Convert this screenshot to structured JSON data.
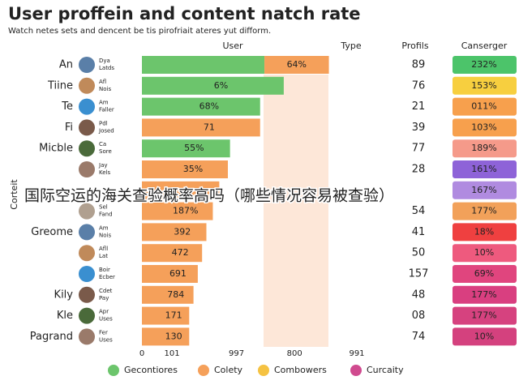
{
  "chart_data": {
    "type": "bar",
    "title": "User proffein and content natch rate",
    "subtitle": "Watch netes sets and dencent be tis pirofriait ateres yut difform.",
    "y_axis_label": "Corteit",
    "headers": [
      "User",
      "Type",
      "Profils",
      "Canserger"
    ],
    "overlay": "国际空运的海关查验概率高吗（哪些情况容易被查验）",
    "xlim": [
      0,
      100
    ],
    "xticks": [
      {
        "value": 0,
        "label": "0"
      },
      {
        "value": 14,
        "label": "101"
      },
      {
        "value": 44,
        "label": "997"
      },
      {
        "value": 71,
        "label": "800"
      },
      {
        "value": 100,
        "label": "991"
      }
    ],
    "rows": [
      {
        "name": "An",
        "handle": [
          "Dya",
          "Latds"
        ],
        "value": 57,
        "color": "#6cc56c",
        "extra": 30,
        "extra_color": "#f5a05a",
        "bar_text": "64%",
        "profils": "89",
        "change": "232%",
        "change_color": "#4cc46a"
      },
      {
        "name": "Tiine",
        "handle": [
          "Afl",
          "Nois"
        ],
        "value": 66,
        "color": "#6cc56c",
        "bar_text": "6%",
        "profils": "76",
        "change": "153%",
        "change_color": "#f7cf3f"
      },
      {
        "name": "Te",
        "handle": [
          "Am",
          "Faller"
        ],
        "value": 55,
        "color": "#6cc56c",
        "bar_text": "68%",
        "profils": "21",
        "change": "011%",
        "change_color": "#f7a04d"
      },
      {
        "name": "Fi",
        "handle": [
          "Pdl",
          "Josed"
        ],
        "value": 55,
        "color": "#f5a05a",
        "bar_text": "71",
        "profils": "39",
        "change": "103%",
        "change_color": "#f7a04d"
      },
      {
        "name": "Micble",
        "handle": [
          "Ca",
          "Sore"
        ],
        "value": 41,
        "color": "#6cc56c",
        "bar_text": "55%",
        "profils": "77",
        "change": "189%",
        "change_color": "#f59a8a"
      },
      {
        "handle": [
          "Jay",
          "Kels"
        ],
        "value": 40,
        "color": "#f5a05a",
        "bar_text": "35%",
        "profils": "28",
        "change": "161%",
        "change_color": "#8e63d8"
      },
      {
        "value": 36,
        "color": "#f5a05a",
        "change": "167%",
        "change_color": "#b08be0"
      },
      {
        "handle": [
          "Sel",
          "Fand"
        ],
        "value": 33,
        "color": "#f5a05a",
        "bar_text": "187%",
        "profils": "54",
        "change": "177%",
        "change_color": "#f2a15a"
      },
      {
        "name": "Greome",
        "handle": [
          "Am",
          "Nois"
        ],
        "value": 30,
        "color": "#f5a05a",
        "bar_text": "392",
        "profils": "41",
        "change": "18%",
        "change_color": "#ef4040"
      },
      {
        "handle": [
          "Afll",
          "Lat"
        ],
        "value": 28,
        "color": "#f5a05a",
        "bar_text": "472",
        "profils": "50",
        "change": "10%",
        "change_color": "#ee5a7e"
      },
      {
        "handle": [
          "Boir",
          "Ecber"
        ],
        "value": 26,
        "color": "#f5a05a",
        "bar_text": "691",
        "profils": "157",
        "change": "69%",
        "change_color": "#e0457e"
      },
      {
        "name": "Kily",
        "handle": [
          "Cdet",
          "Pay"
        ],
        "value": 24,
        "color": "#f5a05a",
        "bar_text": "784",
        "profils": "48",
        "change": "177%",
        "change_color": "#d93f80"
      },
      {
        "name": "Kle",
        "handle": [
          "Apr",
          "Uses"
        ],
        "value": 22,
        "color": "#f5a05a",
        "bar_text": "171",
        "profils": "08",
        "change": "177%",
        "change_color": "#d6427f"
      },
      {
        "name": "Pagrand",
        "handle": [
          "Fer",
          "Uses"
        ],
        "value": 22,
        "color": "#f5a05a",
        "bar_text": "130",
        "profils": "74",
        "change": "10%",
        "change_color": "#d4417e"
      }
    ],
    "legend": [
      {
        "name": "Gecontiores",
        "color": "#6cc56c"
      },
      {
        "name": "Colety",
        "color": "#f5a05a"
      },
      {
        "name": "Combowers",
        "color": "#f5c242"
      },
      {
        "name": "Curcaity",
        "color": "#d04a8f"
      }
    ]
  }
}
